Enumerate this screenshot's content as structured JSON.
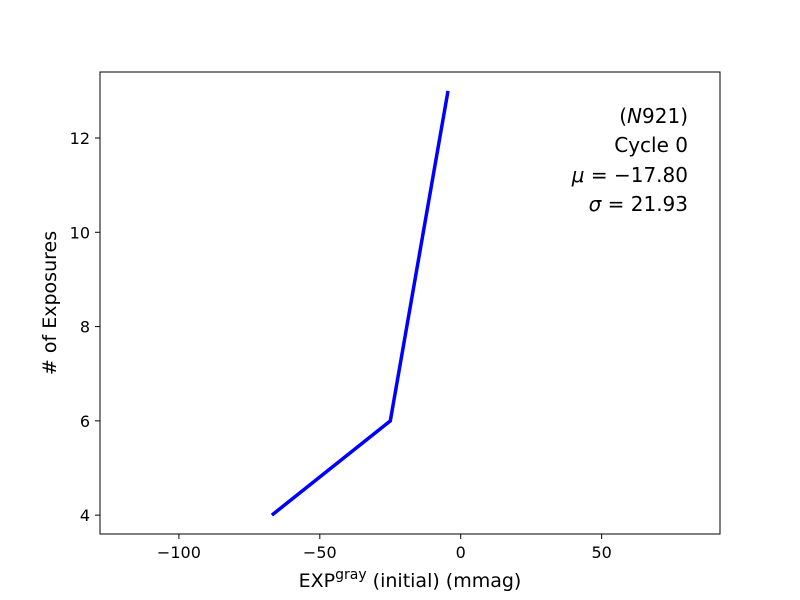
{
  "chart_data": {
    "type": "line",
    "title": "",
    "xlabel": {
      "base": "EXP",
      "superscript": "gray",
      "rest": " (initial) (mmag)"
    },
    "ylabel": "# of Exposures",
    "xlim": [
      -128,
      92
    ],
    "ylim": [
      3.6,
      13.4
    ],
    "xticks": [
      -100,
      -50,
      0,
      50
    ],
    "xtick_labels": [
      "−100",
      "−50",
      "0",
      "50"
    ],
    "yticks": [
      4,
      6,
      8,
      10,
      12
    ],
    "ytick_labels": [
      "4",
      "6",
      "8",
      "10",
      "12"
    ],
    "grid": false,
    "series": [
      {
        "color": "#0000ff",
        "x": [
          -67,
          -25,
          -4.5
        ],
        "y": [
          4,
          6,
          13
        ]
      }
    ],
    "annotations": [
      {
        "italic_part": "N",
        "pre": "(",
        "post": "921)"
      },
      {
        "text": "Cycle 0"
      },
      {
        "symbol": "μ",
        "text": " = −17.80"
      },
      {
        "symbol": "σ",
        "text": " = 21.93"
      }
    ]
  }
}
